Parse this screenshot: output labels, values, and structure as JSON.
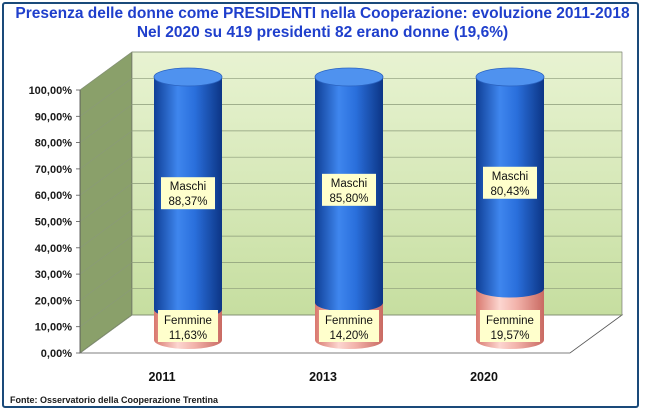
{
  "title_line1": "Presenza delle donne come PRESIDENTI nella Cooperazione: evoluzione 2011-2018",
  "title_line2": "Nel 2020 su 419 presidenti 82 erano donne (19,6%)",
  "source": "Fonte: Osservatorio della Cooperazione Trentina",
  "colors": {
    "maschi": "#1e62d0",
    "femmine": "#f0a8a0",
    "wall": "#cfe3a8",
    "label_bg": "#ffffcc",
    "title": "#1f3fcc"
  },
  "chart_data": {
    "type": "bar",
    "stacked": true,
    "three_d": true,
    "categories": [
      "2011",
      "2013",
      "2020"
    ],
    "series": [
      {
        "name": "Femmine",
        "values": [
          11.63,
          14.2,
          19.57
        ],
        "labels": [
          "11,63%",
          "14,20%",
          "19,57%"
        ]
      },
      {
        "name": "Maschi",
        "values": [
          88.37,
          85.8,
          80.43
        ],
        "labels": [
          "88,37%",
          "85,80%",
          "80,43%"
        ]
      }
    ],
    "ylim": [
      0,
      100
    ],
    "yticks": [
      "0,00%",
      "10,00%",
      "20,00%",
      "30,00%",
      "40,00%",
      "50,00%",
      "60,00%",
      "70,00%",
      "80,00%",
      "90,00%",
      "100,00%"
    ],
    "grid": true
  }
}
